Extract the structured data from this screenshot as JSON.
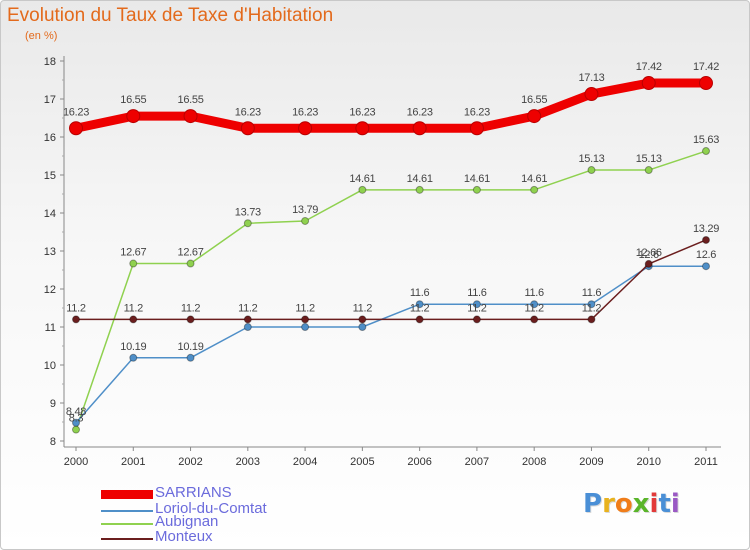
{
  "header": {
    "title": "Evolution du Taux de Taxe d'Habitation",
    "subtitle": "(en %)"
  },
  "brand": {
    "logo_text": "Proxiti",
    "letter_colors": [
      "#4a8fd6",
      "#e8b21e",
      "#f07d1a",
      "#5ab52a",
      "#e23a3a",
      "#4a8fd6",
      "#9a59c4"
    ]
  },
  "chart_data": {
    "type": "line",
    "title": "Evolution du Taux de Taxe d'Habitation",
    "subtitle": "(en %)",
    "xlabel": "",
    "ylabel": "",
    "categories": [
      "2000",
      "2001",
      "2002",
      "2003",
      "2004",
      "2005",
      "2006",
      "2007",
      "2008",
      "2009",
      "2010",
      "2011"
    ],
    "ylim": [
      8,
      18
    ],
    "yticks": [
      "8",
      "9",
      "10",
      "11",
      "12",
      "13",
      "14",
      "15",
      "16",
      "17",
      "18"
    ],
    "grid": false,
    "legend_position": "bottom-left",
    "series": [
      {
        "name": "SARRIANS",
        "color": "#ee0000",
        "width": "thick",
        "values": [
          16.23,
          16.55,
          16.55,
          16.23,
          16.23,
          16.23,
          16.23,
          16.23,
          16.55,
          17.13,
          17.42,
          17.42
        ],
        "labels": [
          "16.23",
          "16.55",
          "16.55",
          "16.23",
          "16.23",
          "16.23",
          "16.23",
          "16.23",
          "16.55",
          "17.13",
          "17.42",
          "17.42"
        ]
      },
      {
        "name": "Loriol-du-Comtat",
        "color": "#4f8fc8",
        "width": "thin",
        "values": [
          8.48,
          10.19,
          10.19,
          11,
          11,
          11,
          11.6,
          11.6,
          11.6,
          11.6,
          12.6,
          12.6
        ],
        "labels": [
          "8.48",
          "10.19",
          "10.19",
          "",
          "",
          "",
          "11.6",
          "11.6",
          "11.6",
          "11.6",
          "12.6",
          "12.6"
        ]
      },
      {
        "name": "Aubignan",
        "color": "#8fd14f",
        "width": "thin",
        "values": [
          8.3,
          12.67,
          12.67,
          13.73,
          13.79,
          14.61,
          14.61,
          14.61,
          14.61,
          15.13,
          15.13,
          15.63
        ],
        "labels": [
          "8.3",
          "12.67",
          "12.67",
          "13.73",
          "13.79",
          "14.61",
          "14.61",
          "14.61",
          "14.61",
          "15.13",
          "15.13",
          "15.63"
        ]
      },
      {
        "name": "Monteux",
        "color": "#6b1e1e",
        "width": "thin",
        "values": [
          11.2,
          11.2,
          11.2,
          11.2,
          11.2,
          11.2,
          11.2,
          11.2,
          11.2,
          11.2,
          12.66,
          13.29
        ],
        "labels": [
          "11.2",
          "11.2",
          "11.2",
          "11.2",
          "11.2",
          "11.2",
          "11.2",
          "11.2",
          "11.2",
          "11.2",
          "12.66",
          "13.29"
        ]
      }
    ]
  }
}
